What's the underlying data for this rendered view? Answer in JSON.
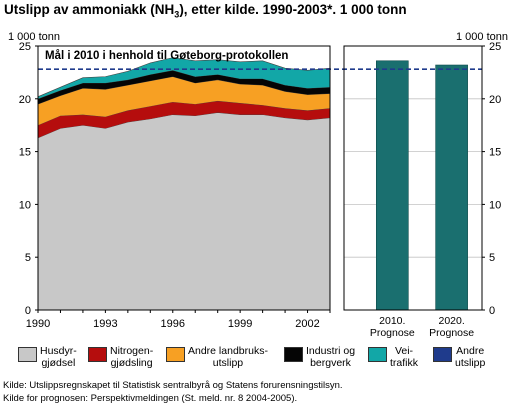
{
  "title": {
    "pre": "Utslipp av ammoniakk (NH",
    "sub": "3",
    "post": "), etter kilde. 1990-2003*. 1 000 tonn"
  },
  "chart_data": {
    "type": "area",
    "title": "Utslipp av ammoniakk (NH3), etter kilde. 1990-2003*. 1 000 tonn",
    "ylabel_left": "1 000 tonn",
    "ylabel_right": "1 000 tonn",
    "ylim": [
      0,
      25
    ],
    "yticks": [
      0,
      5,
      10,
      15,
      20,
      25
    ],
    "x": [
      1990,
      1991,
      1992,
      1993,
      1994,
      1995,
      1996,
      1997,
      1998,
      1999,
      2000,
      2001,
      2002,
      2003
    ],
    "xtick_labels": [
      "1990",
      "1993",
      "1996",
      "1999",
      "2002"
    ],
    "xtick_values": [
      1990,
      1993,
      1996,
      1999,
      2002
    ],
    "series": [
      {
        "name": "Husdyrgjødsel",
        "color": "#c8c8c8",
        "values": [
          16.3,
          17.2,
          17.5,
          17.2,
          17.8,
          18.1,
          18.5,
          18.4,
          18.7,
          18.5,
          18.5,
          18.2,
          18.0,
          18.2
        ]
      },
      {
        "name": "Nitrogengjødsling",
        "color": "#b50d0d",
        "values": [
          1.2,
          1.2,
          1.0,
          1.1,
          1.1,
          1.2,
          1.2,
          1.1,
          1.1,
          1.1,
          0.9,
          0.9,
          0.9,
          0.9
        ]
      },
      {
        "name": "Andre landbruksutslipp",
        "color": "#f7a023",
        "values": [
          2.0,
          1.9,
          2.5,
          2.6,
          2.4,
          2.4,
          2.4,
          2.0,
          2.0,
          1.8,
          1.9,
          1.6,
          1.5,
          1.4
        ]
      },
      {
        "name": "Industri og bergverk",
        "color": "#050505",
        "values": [
          0.5,
          0.5,
          0.5,
          0.6,
          0.5,
          0.6,
          0.6,
          0.6,
          0.5,
          0.5,
          0.6,
          0.6,
          0.6,
          0.6
        ]
      },
      {
        "name": "Veitrafikk",
        "color": "#12a7a7",
        "values": [
          0.2,
          0.3,
          0.5,
          0.6,
          0.8,
          1.1,
          1.2,
          1.5,
          1.4,
          1.6,
          1.7,
          1.6,
          1.7,
          1.8
        ]
      }
    ],
    "target": {
      "label": "Mål i 2010 i henhold til Gøteborg-protokollen",
      "value": 22.8,
      "color": "#1f3b8c",
      "style": "dashed",
      "legend": "Andre utslipp"
    },
    "prognoses": {
      "color": "#1a6f6f",
      "categories": [
        "2010. Prognose",
        "2020. Prognose"
      ],
      "lines": [
        [
          "2010.",
          "Prognose"
        ],
        [
          "2020.",
          "Prognose"
        ]
      ],
      "values": [
        23.6,
        23.2
      ]
    },
    "grid": true,
    "legend_position": "bottom"
  },
  "legend": [
    {
      "lines": [
        "Husdyr-",
        "gjødsel"
      ],
      "color": "#c8c8c8"
    },
    {
      "lines": [
        "Nitrogen-",
        "gjødsling"
      ],
      "color": "#b50d0d"
    },
    {
      "lines": [
        "Andre landbruks-",
        "utslipp"
      ],
      "color": "#f7a023"
    },
    {
      "lines": [
        "Industri og",
        "bergverk"
      ],
      "color": "#050505"
    },
    {
      "lines": [
        "Vei-",
        "trafikk"
      ],
      "color": "#12a7a7"
    },
    {
      "lines": [
        "Andre",
        "utslipp"
      ],
      "color": "#1f3b8c"
    }
  ],
  "source": [
    "Kilde: Utslippsregnskapet til Statistisk sentralbyrå og Statens forurensningstilsyn.",
    "Kilde for prognosen: Perspektivmeldingen (St. meld. nr. 8 2004-2005)."
  ]
}
